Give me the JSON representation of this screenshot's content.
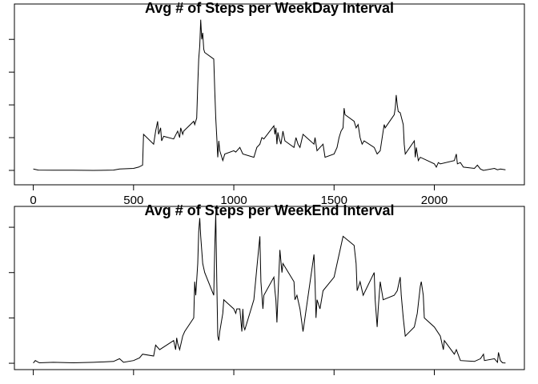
{
  "chart_data": [
    {
      "type": "line",
      "title": "Avg # of Steps per WeekDay Interval",
      "color": "#000000",
      "x": [
        0,
        25,
        100,
        200,
        300,
        400,
        430,
        500,
        525,
        545,
        550,
        600,
        610,
        620,
        625,
        635,
        640,
        650,
        700,
        720,
        730,
        735,
        745,
        750,
        800,
        805,
        815,
        820,
        825,
        830,
        835,
        840,
        845,
        850,
        855,
        900,
        905,
        910,
        915,
        920,
        925,
        930,
        935,
        945,
        955,
        1000,
        1010,
        1030,
        1045,
        1100,
        1115,
        1130,
        1140,
        1150,
        1200,
        1205,
        1210,
        1215,
        1220,
        1225,
        1235,
        1245,
        1255,
        1300,
        1310,
        1320,
        1330,
        1345,
        1400,
        1405,
        1415,
        1430,
        1445,
        1455,
        1500,
        1515,
        1525,
        1535,
        1545,
        1550,
        1555,
        1600,
        1610,
        1620,
        1630,
        1640,
        1650,
        1700,
        1715,
        1730,
        1745,
        1750,
        1755,
        1800,
        1805,
        1810,
        1815,
        1820,
        1830,
        1845,
        1850,
        1855,
        1900,
        1905,
        1910,
        1920,
        1930,
        2000,
        2010,
        2020,
        2030,
        2100,
        2110,
        2115,
        2130,
        2145,
        2200,
        2215,
        2230,
        2245,
        2300,
        2315,
        2330,
        2355
      ],
      "values": [
        2,
        0.5,
        0.3,
        0.2,
        0,
        0.5,
        2,
        3,
        5,
        8,
        55,
        40,
        60,
        75,
        55,
        65,
        45,
        52,
        48,
        60,
        50,
        65,
        55,
        60,
        75,
        70,
        80,
        130,
        170,
        190,
        230,
        200,
        210,
        185,
        180,
        170,
        120,
        80,
        50,
        20,
        45,
        30,
        25,
        15,
        25,
        30,
        28,
        35,
        25,
        20,
        35,
        40,
        50,
        48,
        68,
        55,
        65,
        40,
        58,
        50,
        40,
        60,
        45,
        35,
        50,
        40,
        35,
        55,
        40,
        50,
        30,
        35,
        40,
        20,
        25,
        35,
        50,
        60,
        65,
        95,
        85,
        75,
        65,
        70,
        50,
        40,
        45,
        35,
        25,
        30,
        60,
        70,
        65,
        85,
        95,
        115,
        100,
        90,
        88,
        70,
        40,
        25,
        45,
        20,
        35,
        15,
        20,
        10,
        5,
        12,
        10,
        15,
        25,
        10,
        12,
        5,
        3,
        8,
        2,
        0,
        3,
        1,
        2,
        1
      ],
      "xlim": [
        -94.2,
        2449.2
      ],
      "ylim": [
        -22,
        254
      ],
      "xticks": [
        0,
        500,
        1000,
        1500,
        2000
      ],
      "yticks": [
        0,
        50,
        100,
        150,
        200
      ],
      "tick_labels": true
    },
    {
      "type": "line",
      "title": "Avg # of Steps per WeekEnd Interval",
      "color": "#000000",
      "x": [
        0,
        10,
        30,
        100,
        200,
        300,
        400,
        430,
        450,
        500,
        530,
        545,
        600,
        610,
        630,
        700,
        710,
        715,
        720,
        730,
        745,
        755,
        800,
        805,
        810,
        820,
        825,
        830,
        835,
        845,
        855,
        900,
        905,
        910,
        915,
        920,
        925,
        930,
        945,
        950,
        1000,
        1010,
        1015,
        1030,
        1040,
        1045,
        1050,
        1055,
        1100,
        1115,
        1130,
        1135,
        1145,
        1150,
        1200,
        1205,
        1210,
        1215,
        1230,
        1240,
        1245,
        1300,
        1305,
        1315,
        1330,
        1345,
        1400,
        1405,
        1410,
        1415,
        1430,
        1445,
        1500,
        1530,
        1545,
        1600,
        1610,
        1615,
        1630,
        1645,
        1700,
        1705,
        1715,
        1720,
        1730,
        1745,
        1800,
        1815,
        1830,
        1835,
        1845,
        1855,
        1900,
        1915,
        1930,
        1935,
        1945,
        1950,
        2000,
        2030,
        2045,
        2050,
        2100,
        2110,
        2130,
        2200,
        2230,
        2245,
        2250,
        2300,
        2315,
        2320,
        2330,
        2340,
        2355
      ],
      "values": [
        0.2,
        3,
        0.5,
        1,
        0.5,
        1,
        2,
        5,
        1,
        3,
        6,
        10,
        8,
        20,
        15,
        25,
        15,
        28,
        22,
        15,
        30,
        35,
        50,
        90,
        75,
        110,
        145,
        160,
        140,
        110,
        100,
        75,
        130,
        165,
        90,
        30,
        25,
        35,
        55,
        70,
        60,
        55,
        60,
        60,
        35,
        60,
        40,
        37,
        70,
        105,
        140,
        90,
        60,
        75,
        95,
        80,
        70,
        45,
        125,
        100,
        110,
        90,
        70,
        75,
        60,
        35,
        120,
        90,
        50,
        70,
        60,
        80,
        95,
        125,
        140,
        130,
        110,
        80,
        90,
        75,
        100,
        70,
        40,
        60,
        90,
        70,
        75,
        80,
        95,
        75,
        50,
        30,
        40,
        55,
        85,
        90,
        75,
        50,
        40,
        30,
        15,
        25,
        10,
        15,
        3,
        2,
        5,
        10,
        3,
        5,
        1,
        12,
        3,
        0.5,
        0.2
      ],
      "xlim": [
        -94.2,
        2449.2
      ],
      "ylim": [
        -7,
        173
      ],
      "xticks": [
        0,
        500,
        1000,
        1500,
        2000
      ],
      "yticks": [
        0,
        50,
        100,
        150
      ],
      "tick_labels": false
    }
  ]
}
